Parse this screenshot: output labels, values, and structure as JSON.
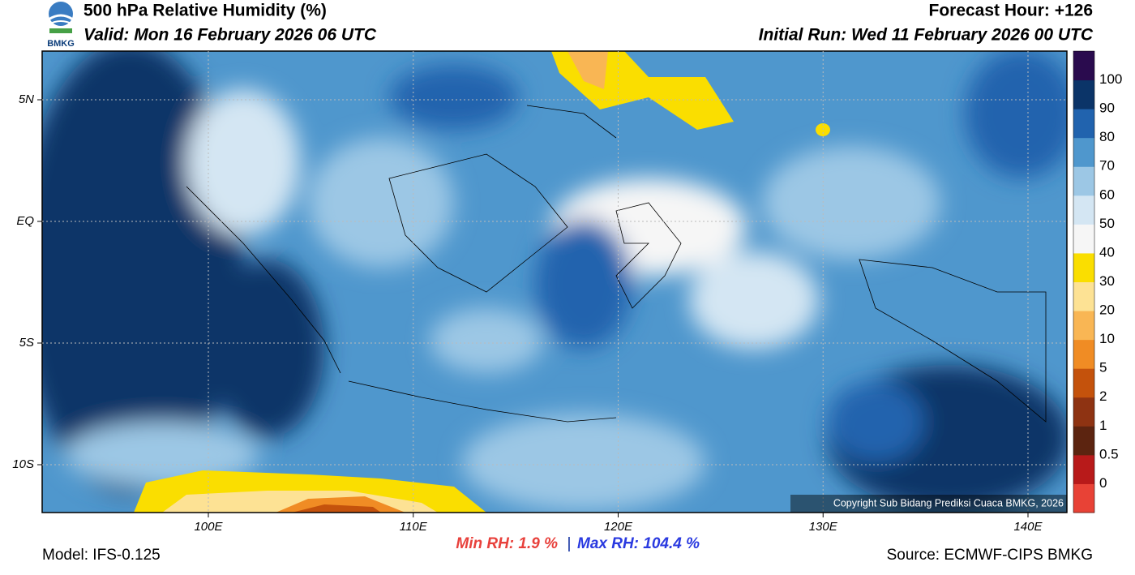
{
  "header": {
    "title": "500 hPa Relative Humidity (%)",
    "valid": "Valid: Mon 16 February 2026 06 UTC",
    "forecast_hour": "Forecast Hour: +126",
    "initial_run": "Initial Run: Wed 11 February 2026 00 UTC",
    "logo": "BMKG"
  },
  "map": {
    "lat_labels": [
      "5N",
      "EQ",
      "5S",
      "10S"
    ],
    "lon_labels": [
      "100E",
      "110E",
      "120E",
      "130E",
      "140E"
    ],
    "copyright": "Copyright Sub Bidang Prediksi Cuaca BMKG, 2026"
  },
  "colorbar": {
    "labels": [
      "0",
      "0.5",
      "1",
      "2",
      "5",
      "10",
      "20",
      "30",
      "40",
      "50",
      "60",
      "70",
      "80",
      "90",
      "100"
    ],
    "colors": [
      "#e84236",
      "#b81a1a",
      "#5c2410",
      "#8e3312",
      "#c4520c",
      "#f08c24",
      "#f9b654",
      "#fde294",
      "#fade00",
      "#f6f6f6",
      "#d4e6f3",
      "#9cc7e5",
      "#4f97cd",
      "#2163ae",
      "#0b3468",
      "#2a0b4e"
    ]
  },
  "footer": {
    "min_rh": "Min RH:   1.9 %",
    "separator": "|",
    "max_rh": "Max RH: 104.4 %",
    "model": "Model: IFS-0.125",
    "source": "Source: ECMWF-CIPS BMKG"
  }
}
